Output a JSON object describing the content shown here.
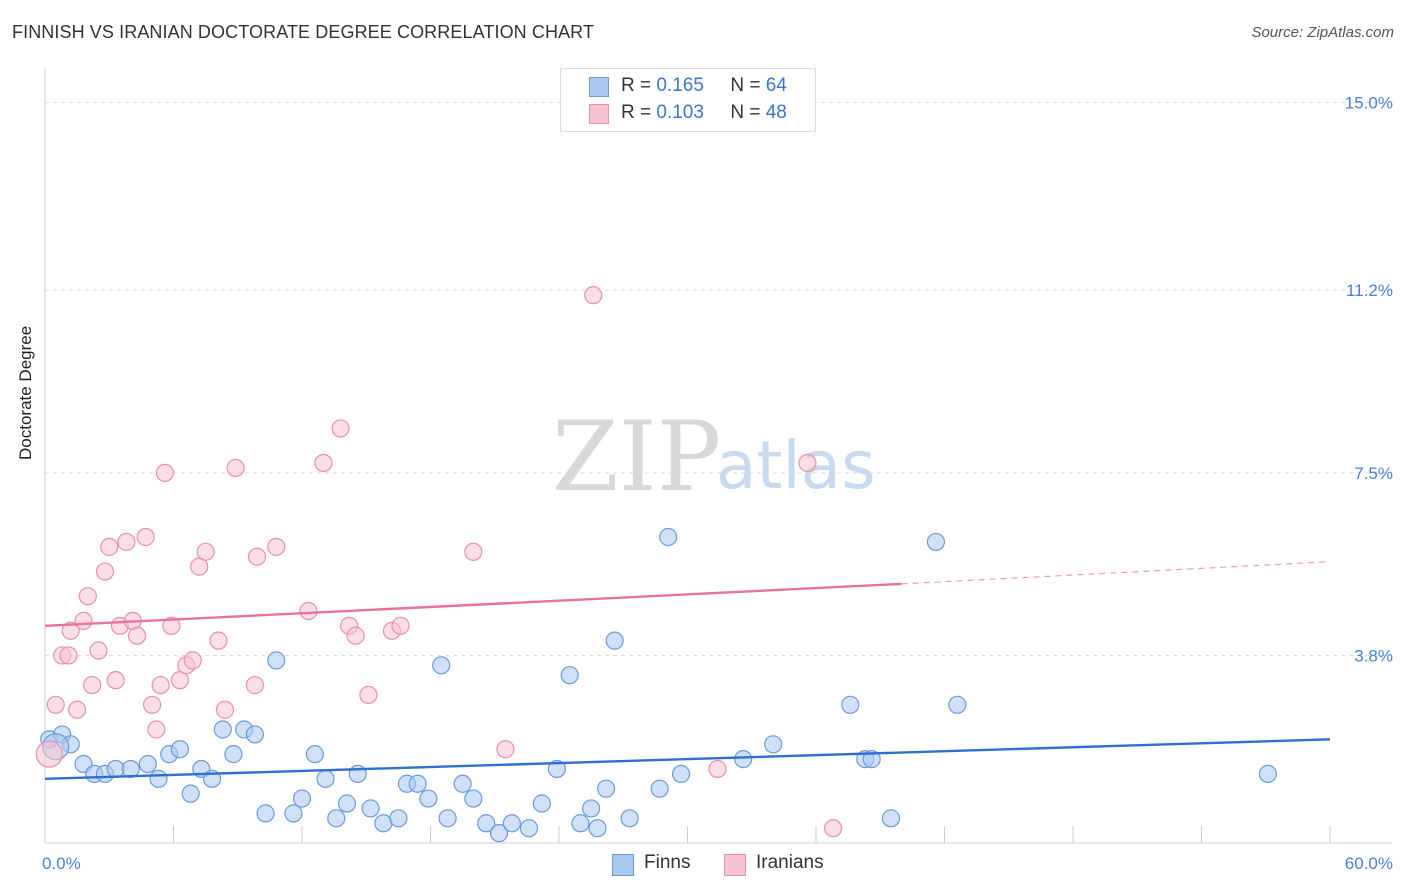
{
  "header": {
    "title": "FINNISH VS IRANIAN DOCTORATE DEGREE CORRELATION CHART",
    "source": "Source: ZipAtlas.com"
  },
  "watermark": {
    "zip": "ZIP",
    "atlas": "atlas"
  },
  "legend": {
    "r_label": "R =",
    "n_label": "N =",
    "rows": [
      {
        "r": "0.165",
        "n": "64"
      },
      {
        "r": "0.103",
        "n": "48"
      }
    ]
  },
  "bottom_legend": {
    "finns": "Finns",
    "iranians": "Iranians"
  },
  "colors": {
    "finns_fill": "#a9c8f0",
    "finns_stroke": "#6a9be0",
    "finns_line": "#2f6fd0",
    "iranians_fill": "#f7c2d2",
    "iranians_stroke": "#ea90ad",
    "iranians_line": "#e8729a",
    "tick_text": "#4a7fd4",
    "grid": "#dcdcdc"
  },
  "chart_data": {
    "type": "scatter",
    "title": "FINNISH VS IRANIAN DOCTORATE DEGREE CORRELATION CHART",
    "xlabel": "",
    "ylabel": "Doctorate Degree",
    "xlim": [
      0,
      60
    ],
    "ylim": [
      0,
      15.5
    ],
    "x_tick_labels": [
      "0.0%",
      "60.0%"
    ],
    "y_ticks": [
      3.8,
      7.5,
      11.2,
      15.0
    ],
    "y_tick_labels": [
      "3.8%",
      "7.5%",
      "11.2%",
      "15.0%"
    ],
    "grid": "horizontal dashed",
    "legend_position": "top-center",
    "series": [
      {
        "name": "Finns",
        "R": 0.165,
        "N": 64,
        "trend": {
          "x": [
            0,
            60
          ],
          "y": [
            1.3,
            2.1
          ]
        },
        "points": [
          [
            0.2,
            2.1
          ],
          [
            0.8,
            2.2
          ],
          [
            1.2,
            2.0
          ],
          [
            1.8,
            1.6
          ],
          [
            2.3,
            1.4
          ],
          [
            2.8,
            1.4
          ],
          [
            3.3,
            1.5
          ],
          [
            4.0,
            1.5
          ],
          [
            4.8,
            1.6
          ],
          [
            5.3,
            1.3
          ],
          [
            5.8,
            1.8
          ],
          [
            6.3,
            1.9
          ],
          [
            6.8,
            1.0
          ],
          [
            7.3,
            1.5
          ],
          [
            7.8,
            1.3
          ],
          [
            8.3,
            2.3
          ],
          [
            8.8,
            1.8
          ],
          [
            9.3,
            2.3
          ],
          [
            9.8,
            2.2
          ],
          [
            10.3,
            0.6
          ],
          [
            10.8,
            3.7
          ],
          [
            11.6,
            0.6
          ],
          [
            12.0,
            0.9
          ],
          [
            12.6,
            1.8
          ],
          [
            13.1,
            1.3
          ],
          [
            13.6,
            0.5
          ],
          [
            14.1,
            0.8
          ],
          [
            14.6,
            1.4
          ],
          [
            15.2,
            0.7
          ],
          [
            15.8,
            0.4
          ],
          [
            16.5,
            0.5
          ],
          [
            16.9,
            1.2
          ],
          [
            17.4,
            1.2
          ],
          [
            17.9,
            0.9
          ],
          [
            18.5,
            3.6
          ],
          [
            18.8,
            0.5
          ],
          [
            19.5,
            1.2
          ],
          [
            20.0,
            0.9
          ],
          [
            20.6,
            0.4
          ],
          [
            21.2,
            0.2
          ],
          [
            21.8,
            0.4
          ],
          [
            22.6,
            0.3
          ],
          [
            23.2,
            0.8
          ],
          [
            23.9,
            1.5
          ],
          [
            24.5,
            3.4
          ],
          [
            25.0,
            0.4
          ],
          [
            25.5,
            0.7
          ],
          [
            25.8,
            0.3
          ],
          [
            26.2,
            1.1
          ],
          [
            26.6,
            4.1
          ],
          [
            27.3,
            0.5
          ],
          [
            28.7,
            1.1
          ],
          [
            29.1,
            6.2
          ],
          [
            29.7,
            1.4
          ],
          [
            32.6,
            1.7
          ],
          [
            34.0,
            2.0
          ],
          [
            37.6,
            2.8
          ],
          [
            38.3,
            1.7
          ],
          [
            38.6,
            1.7
          ],
          [
            39.5,
            0.5
          ],
          [
            41.6,
            6.1
          ],
          [
            42.6,
            2.8
          ],
          [
            57.1,
            1.4
          ],
          [
            0.5,
            1.95
          ]
        ]
      },
      {
        "name": "Iranians",
        "R": 0.103,
        "N": 48,
        "trend": {
          "x": [
            0,
            40
          ],
          "y": [
            4.4,
            5.25
          ],
          "dashed_x": [
            40,
            60
          ],
          "dashed_y": [
            5.25,
            5.7
          ]
        },
        "points": [
          [
            0.2,
            1.8
          ],
          [
            0.5,
            2.8
          ],
          [
            0.8,
            3.8
          ],
          [
            1.1,
            3.8
          ],
          [
            1.2,
            4.3
          ],
          [
            1.5,
            2.7
          ],
          [
            1.8,
            4.5
          ],
          [
            2.0,
            5.0
          ],
          [
            2.2,
            3.2
          ],
          [
            2.5,
            3.9
          ],
          [
            2.8,
            5.5
          ],
          [
            3.0,
            6.0
          ],
          [
            3.3,
            3.3
          ],
          [
            3.5,
            4.4
          ],
          [
            3.8,
            6.1
          ],
          [
            4.1,
            4.5
          ],
          [
            4.3,
            4.2
          ],
          [
            4.7,
            6.2
          ],
          [
            5.0,
            2.8
          ],
          [
            5.2,
            2.3
          ],
          [
            5.4,
            3.2
          ],
          [
            5.6,
            7.5
          ],
          [
            5.9,
            4.4
          ],
          [
            6.3,
            3.3
          ],
          [
            6.6,
            3.6
          ],
          [
            6.9,
            3.7
          ],
          [
            7.2,
            5.6
          ],
          [
            7.5,
            5.9
          ],
          [
            8.1,
            4.1
          ],
          [
            8.4,
            2.7
          ],
          [
            8.9,
            7.6
          ],
          [
            9.8,
            3.2
          ],
          [
            9.9,
            5.8
          ],
          [
            10.8,
            6.0
          ],
          [
            12.3,
            4.7
          ],
          [
            13.0,
            7.7
          ],
          [
            13.8,
            8.4
          ],
          [
            14.2,
            4.4
          ],
          [
            14.5,
            4.2
          ],
          [
            15.1,
            3.0
          ],
          [
            16.2,
            4.3
          ],
          [
            16.6,
            4.4
          ],
          [
            20.0,
            5.9
          ],
          [
            21.5,
            1.9
          ],
          [
            25.6,
            11.1
          ],
          [
            31.4,
            1.5
          ],
          [
            35.6,
            7.7
          ],
          [
            36.8,
            0.3
          ]
        ]
      }
    ]
  }
}
